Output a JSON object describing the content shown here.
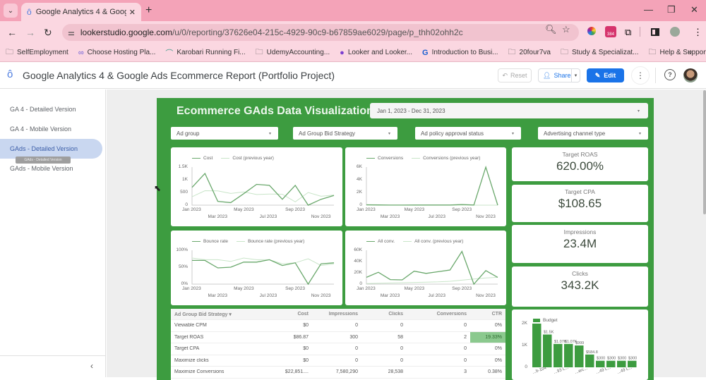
{
  "browser": {
    "tab_title": "Google Analytics 4 & Google A",
    "url_host": "lookerstudio.google.com",
    "url_path": "/u/0/reporting/37626e04-215c-4929-90c9-b67859ae6029/page/p_thh02ohh2c",
    "extension_badge": "384",
    "bookmarks": [
      {
        "icon": "folder-icon",
        "label": "SelfEmployment"
      },
      {
        "icon": "link-icon",
        "label": "Choose Hosting Pla..."
      },
      {
        "icon": "site-icon",
        "label": "Karobari Running Fi..."
      },
      {
        "icon": "folder-icon",
        "label": "UdemyAccounting..."
      },
      {
        "icon": "site-icon",
        "label": "Looker and Looker..."
      },
      {
        "icon": "site-icon",
        "label": "Introduction to Busi..."
      },
      {
        "icon": "folder-icon",
        "label": "20four7va"
      },
      {
        "icon": "folder-icon",
        "label": "Study & Specializat..."
      },
      {
        "icon": "folder-icon",
        "label": "Help & Support"
      }
    ]
  },
  "header": {
    "title": "Google Analytics 4 & Google Ads Ecommerce Report (Portfolio Project)",
    "reset_label": "Reset",
    "share_label": "Share",
    "edit_label": "Edit"
  },
  "sidebar": {
    "pages": [
      {
        "label": "GA 4 - Detailed Version",
        "active": false
      },
      {
        "label": "GA 4 - Mobile Version",
        "active": false
      },
      {
        "label": "GAds - Detailed Version",
        "active": true
      },
      {
        "label": "GAds - Mobile Version",
        "active": false
      }
    ],
    "tooltip": "GAds - Detailed Version"
  },
  "report": {
    "title": "Ecommerce GAds Data Visualization",
    "date_range": "Jan 1, 2023 - Dec 31, 2023",
    "filters": [
      "Ad group",
      "Ad Group Bid Strategy",
      "Ad policy approval status",
      "Advertising channel type"
    ],
    "accent": "#3d9c40",
    "kpis": [
      {
        "label": "Target ROAS",
        "value": "620.00%"
      },
      {
        "label": "Target CPA",
        "value": "$108.65"
      },
      {
        "label": "Impressions",
        "value": "23.4M"
      },
      {
        "label": "Clicks",
        "value": "343.2K"
      }
    ],
    "table": {
      "headers": [
        "Ad Group Bid Strategy",
        "Cost",
        "Impressions",
        "Clicks",
        "Conversions",
        "CTR"
      ],
      "rows": [
        [
          "Viewable CPM",
          "$0",
          "0",
          "0",
          "0",
          "0%"
        ],
        [
          "Target ROAS",
          "$86.87",
          "300",
          "58",
          "2",
          "19.33%"
        ],
        [
          "Target CPA",
          "$0",
          "0",
          "0",
          "0",
          "0%"
        ],
        [
          "Maximize clicks",
          "$0",
          "0",
          "0",
          "0",
          "0%"
        ],
        [
          "Maximize Conversions",
          "$22,851....",
          "7,580,290",
          "28,538",
          "3",
          "0.38%"
        ]
      ]
    }
  },
  "chart_data": [
    {
      "type": "line",
      "title": "Cost",
      "x": [
        "Jan 2023",
        "Feb 2023",
        "Mar 2023",
        "Apr 2023",
        "May 2023",
        "Jun 2023",
        "Jul 2023",
        "Aug 2023",
        "Sep 2023",
        "Oct 2023",
        "Nov 2023",
        "Dec 2023"
      ],
      "series": [
        {
          "name": "Cost",
          "values": [
            700,
            1250,
            150,
            100,
            450,
            820,
            780,
            230,
            780,
            0,
            230,
            380
          ]
        },
        {
          "name": "Cost (previous year)",
          "values": [
            330,
            570,
            560,
            460,
            520,
            420,
            440,
            430,
            130,
            500,
            350,
            400
          ]
        }
      ],
      "yticks": [
        "0",
        "500",
        "1K",
        "1.5K"
      ],
      "xticks_top": [
        "Jan 2023",
        "May 2023",
        "Sep 2023"
      ],
      "xticks_bottom": [
        "Mar 2023",
        "Jul 2023",
        "Nov 2023"
      ],
      "ylim": [
        0,
        1500
      ]
    },
    {
      "type": "line",
      "title": "Conversions",
      "x": [
        "Jan 2023",
        "Feb 2023",
        "Mar 2023",
        "Apr 2023",
        "May 2023",
        "Jun 2023",
        "Jul 2023",
        "Aug 2023",
        "Sep 2023",
        "Oct 2023",
        "Nov 2023",
        "Dec 2023"
      ],
      "series": [
        {
          "name": "Conversions",
          "values": [
            50,
            30,
            10,
            10,
            20,
            20,
            20,
            20,
            100,
            20,
            6000,
            0
          ]
        },
        {
          "name": "Conversions (previous year)",
          "values": [
            0,
            0,
            0,
            0,
            0,
            0,
            0,
            0,
            0,
            0,
            0,
            0
          ]
        }
      ],
      "yticks": [
        "0",
        "2K",
        "4K",
        "6K"
      ],
      "xticks_top": [
        "Jan 2023",
        "May 2023",
        "Sep 2023"
      ],
      "xticks_bottom": [
        "Mar 2023",
        "Jul 2023",
        "Nov 2023"
      ],
      "ylim": [
        0,
        6000
      ]
    },
    {
      "type": "line",
      "title": "Bounce rate",
      "x": [
        "Jan 2023",
        "Feb 2023",
        "Mar 2023",
        "Apr 2023",
        "May 2023",
        "Jun 2023",
        "Jul 2023",
        "Aug 2023",
        "Sep 2023",
        "Oct 2023",
        "Nov 2023",
        "Dec 2023"
      ],
      "series": [
        {
          "name": "Bounce rate",
          "values": [
            70,
            70,
            48,
            50,
            65,
            65,
            72,
            55,
            63,
            0,
            60,
            63
          ]
        },
        {
          "name": "Bounce rate (previous year)",
          "values": [
            77,
            72,
            72,
            67,
            77,
            72,
            72,
            60,
            63,
            75,
            55,
            60
          ]
        }
      ],
      "yticks": [
        "0%",
        "50%",
        "100%"
      ],
      "xticks_top": [
        "Jan 2023",
        "May 2023",
        "Sep 2023"
      ],
      "xticks_bottom": [
        "Mar 2023",
        "Jul 2023",
        "Nov 2023"
      ],
      "ylim": [
        0,
        100
      ]
    },
    {
      "type": "line",
      "title": "All conv.",
      "x": [
        "Jan 2023",
        "Feb 2023",
        "Mar 2023",
        "Apr 2023",
        "May 2023",
        "Jun 2023",
        "Jul 2023",
        "Aug 2023",
        "Sep 2023",
        "Oct 2023",
        "Nov 2023",
        "Dec 2023"
      ],
      "series": [
        {
          "name": "All conv.",
          "values": [
            12000,
            21000,
            8000,
            7500,
            23000,
            19000,
            22000,
            25000,
            58000,
            0,
            24000,
            12000
          ]
        },
        {
          "name": "All conv. (previous year)",
          "values": [
            1000,
            1500,
            2000,
            2500,
            3000,
            3500,
            4000,
            5000,
            7000,
            9000,
            11000,
            12000
          ]
        }
      ],
      "yticks": [
        "0",
        "20K",
        "40K",
        "60K"
      ],
      "xticks_top": [
        "Jan 2023",
        "May 2023",
        "Sep 2023"
      ],
      "xticks_bottom": [
        "Mar 2023",
        "Jul 2023",
        "Nov 2023"
      ],
      "ylim": [
        0,
        60000
      ]
    },
    {
      "type": "bar",
      "title": "Budget",
      "categories": [
        "...b-104",
        "",
        "...93 L...",
        "",
        "...arc...",
        "",
        "...49 L...",
        "",
        "...49 L...",
        ""
      ],
      "values": [
        2000,
        1500,
        1070,
        1070,
        999,
        584.8,
        300,
        300,
        300,
        300
      ],
      "data_labels": [
        "",
        "$1.5K",
        "$1.07K",
        "$1.07K",
        "$999",
        "$584.8",
        "$300",
        "$300",
        "$300",
        "$300"
      ],
      "yticks": [
        "0",
        "1K",
        "2K"
      ],
      "ylim": [
        0,
        2000
      ]
    }
  ]
}
